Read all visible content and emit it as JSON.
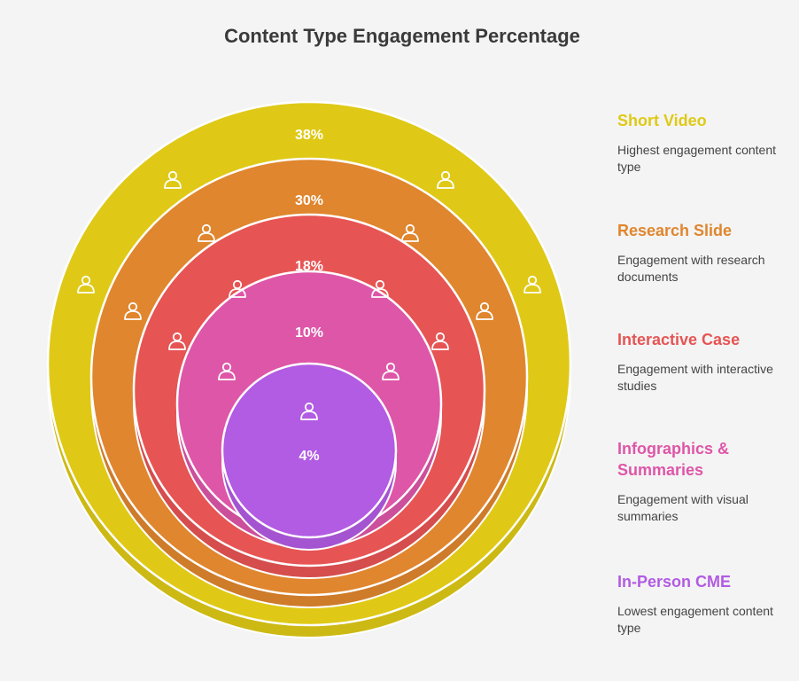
{
  "title": "Content Type Engagement Percentage",
  "rings": [
    {
      "name": "Short Video",
      "value": "38%",
      "color": "#dfc916",
      "description": "Highest engagement content type"
    },
    {
      "name": "Research Slide",
      "value": "30%",
      "color": "#e0862e",
      "description": "Engagement with research documents"
    },
    {
      "name": "Interactive Case",
      "value": "18%",
      "color": "#e75454",
      "description": "Engagement with interactive studies"
    },
    {
      "name": "Infographics & Summaries",
      "value": "10%",
      "color": "#de56a8",
      "description": "Engagement with visual summaries"
    },
    {
      "name": "In-Person CME",
      "value": "4%",
      "color": "#b25be3",
      "description": "Lowest engagement content type"
    }
  ],
  "icon": "person-icon"
}
